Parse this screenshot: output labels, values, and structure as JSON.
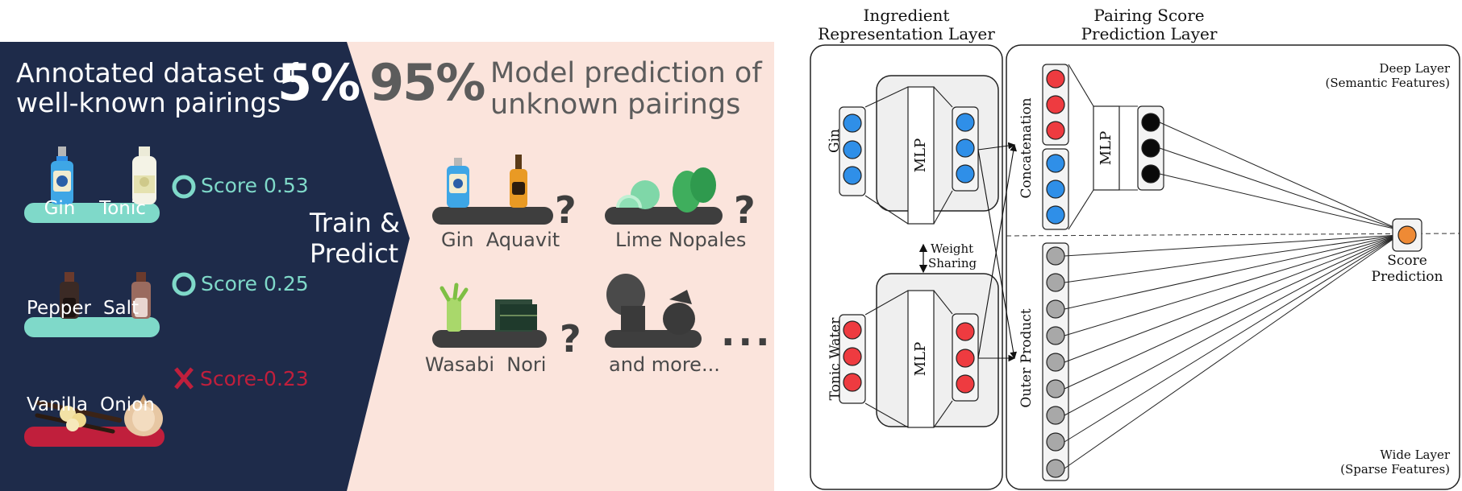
{
  "infographic": {
    "annotated": {
      "title_line1": "Annotated dataset of",
      "title_line2": "well-known pairings",
      "percent": "5%"
    },
    "predicted": {
      "percent": "95%",
      "title_line1": "Model prediction of",
      "title_line2": "unknown pairings"
    },
    "train_predict": {
      "line1": "Train &",
      "line2": "Predict"
    },
    "known_pairs": [
      {
        "left": "Gin",
        "right": "Tonic",
        "score": "Score 0.53",
        "status": "positive"
      },
      {
        "left": "Pepper",
        "right": "Salt",
        "score": "Score 0.25",
        "status": "positive"
      },
      {
        "left": "Vanilla",
        "right": "Onion",
        "score": "Score-0.23",
        "status": "negative"
      }
    ],
    "unknown_pairs": [
      {
        "label": "Gin  Aquavit"
      },
      {
        "label": "Lime Nopales"
      },
      {
        "label": "Wasabi  Nori"
      },
      {
        "label": "and more..."
      }
    ],
    "ellipsis": "...",
    "question_mark": "?",
    "colors": {
      "navy": "#1e2b4a",
      "peach": "#fbe4dc",
      "teal": "#7fd9c9",
      "crimson": "#c01f3c"
    }
  },
  "diagram": {
    "ingredient_header_line1": "Ingredient",
    "ingredient_header_line2": "Representation Layer",
    "pairing_header_line1": "Pairing Score",
    "pairing_header_line2": "Prediction Layer",
    "input_top": "Gin",
    "input_bottom": "Tonic Water",
    "mlp": "MLP",
    "weight_sharing_line1": "Weight",
    "weight_sharing_line2": "Sharing",
    "concatenation": "Concatenation",
    "outer_product": "Outer Product",
    "deep_layer_line1": "Deep Layer",
    "deep_layer_line2": "(Semantic Features)",
    "wide_layer_line1": "Wide Layer",
    "wide_layer_line2": "(Sparse Features)",
    "score_line1": "Score",
    "score_line2": "Prediction",
    "colors": {
      "blue": "#2f8fe8",
      "red": "#ee3b40",
      "gray": "#a8a8a8",
      "black": "#0a0a0a",
      "orange": "#ee8a35"
    }
  }
}
